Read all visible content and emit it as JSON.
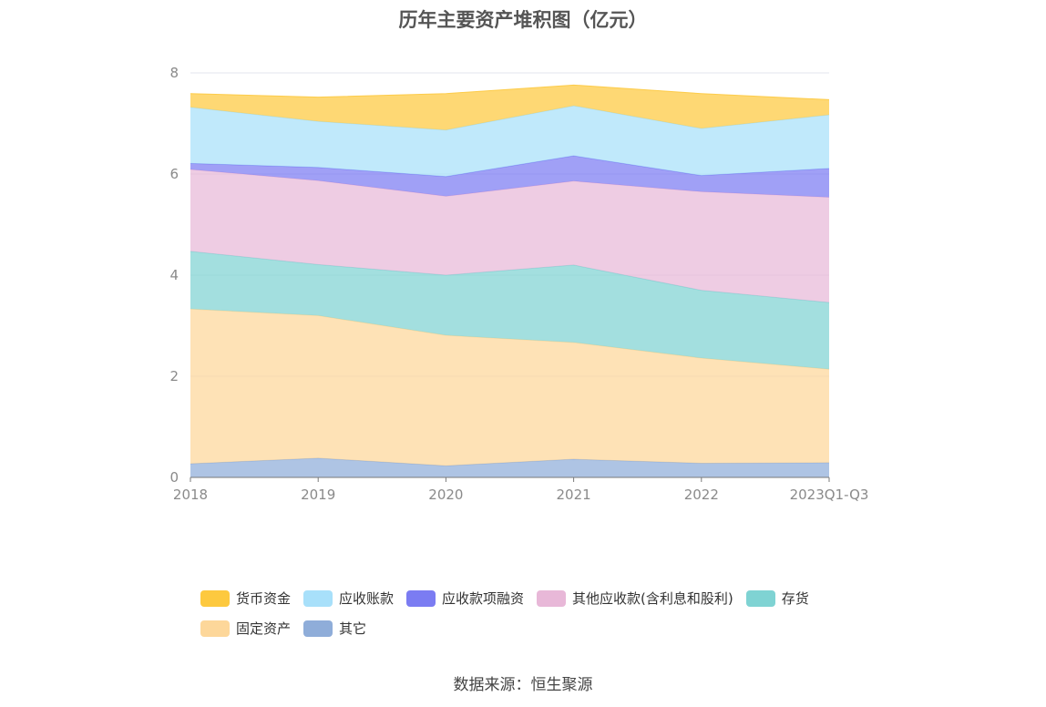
{
  "chart_data": {
    "type": "area",
    "stacked": true,
    "title": "历年主要资产堆积图（亿元）",
    "x": [
      "2018",
      "2019",
      "2020",
      "2021",
      "2022",
      "2023Q1-Q3"
    ],
    "ylim": [
      0,
      8
    ],
    "yticks": [
      "0",
      "2",
      "4",
      "6",
      "8"
    ],
    "grid": true,
    "legend_position": "bottom",
    "series": [
      {
        "name": "其它",
        "color": "#8fadd9",
        "values": [
          0.27,
          0.38,
          0.23,
          0.36,
          0.28,
          0.29
        ]
      },
      {
        "name": "固定资产",
        "color": "#fdd79a",
        "values": [
          3.06,
          2.82,
          2.58,
          2.31,
          2.08,
          1.85
        ]
      },
      {
        "name": "存货",
        "color": "#7fd3d3",
        "values": [
          1.14,
          1.01,
          1.19,
          1.53,
          1.34,
          1.32
        ]
      },
      {
        "name": "其他应收款(含利息和股利)",
        "color": "#e8b8d8",
        "values": [
          1.62,
          1.66,
          1.56,
          1.66,
          1.95,
          2.08
        ]
      },
      {
        "name": "应收款项融资",
        "color": "#7b7cf2",
        "values": [
          0.12,
          0.26,
          0.39,
          0.5,
          0.32,
          0.57
        ]
      },
      {
        "name": "应收账款",
        "color": "#a8e0fa",
        "values": [
          1.11,
          0.91,
          0.92,
          0.99,
          0.93,
          1.06
        ]
      },
      {
        "name": "货币资金",
        "color": "#fdc93f",
        "values": [
          0.27,
          0.48,
          0.72,
          0.41,
          0.69,
          0.3
        ]
      }
    ],
    "legend_order": [
      "货币资金",
      "应收账款",
      "应收款项融资",
      "其他应收款(含利息和股利)",
      "存货",
      "固定资产",
      "其它"
    ]
  },
  "source": "数据来源：恒生聚源"
}
